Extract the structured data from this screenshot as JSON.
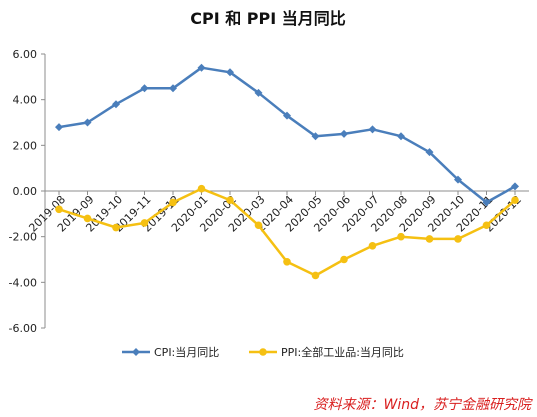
{
  "chart_data": {
    "type": "line",
    "title": "CPI 和 PPI 当月同比",
    "xlabel": "",
    "ylabel": "",
    "categories": [
      "2019-08",
      "2019-09",
      "2019-10",
      "2019-11",
      "2019-12",
      "2020-01",
      "2020-02",
      "2020-03",
      "2020-04",
      "2020-05",
      "2020-06",
      "2020-07",
      "2020-08",
      "2020-09",
      "2020-10",
      "2020-11",
      "2020-12"
    ],
    "ylim": [
      -6,
      6
    ],
    "yticks": [
      -6,
      -4,
      -2,
      0,
      2,
      4,
      6
    ],
    "ytick_labels": [
      "-6.00",
      "-4.00",
      "-2.00",
      "0.00",
      "2.00",
      "4.00",
      "6.00"
    ],
    "grid": false,
    "legend_position": "bottom",
    "series": [
      {
        "name": "CPI:当月同比",
        "color": "#4a7ebb",
        "marker": "diamond",
        "values": [
          2.8,
          3.0,
          3.8,
          4.5,
          4.5,
          5.4,
          5.2,
          4.3,
          3.3,
          2.4,
          2.5,
          2.7,
          2.4,
          1.7,
          0.5,
          -0.5,
          0.2
        ]
      },
      {
        "name": "PPI:全部工业品:当月同比",
        "color": "#f5c012",
        "marker": "circle",
        "values": [
          -0.8,
          -1.2,
          -1.6,
          -1.4,
          -0.5,
          0.1,
          -0.4,
          -1.5,
          -3.1,
          -3.7,
          -3.0,
          -2.4,
          -2.0,
          -2.1,
          -2.1,
          -1.5,
          -0.4
        ]
      }
    ],
    "source": "资料来源：Wind，苏宁金融研究院"
  }
}
